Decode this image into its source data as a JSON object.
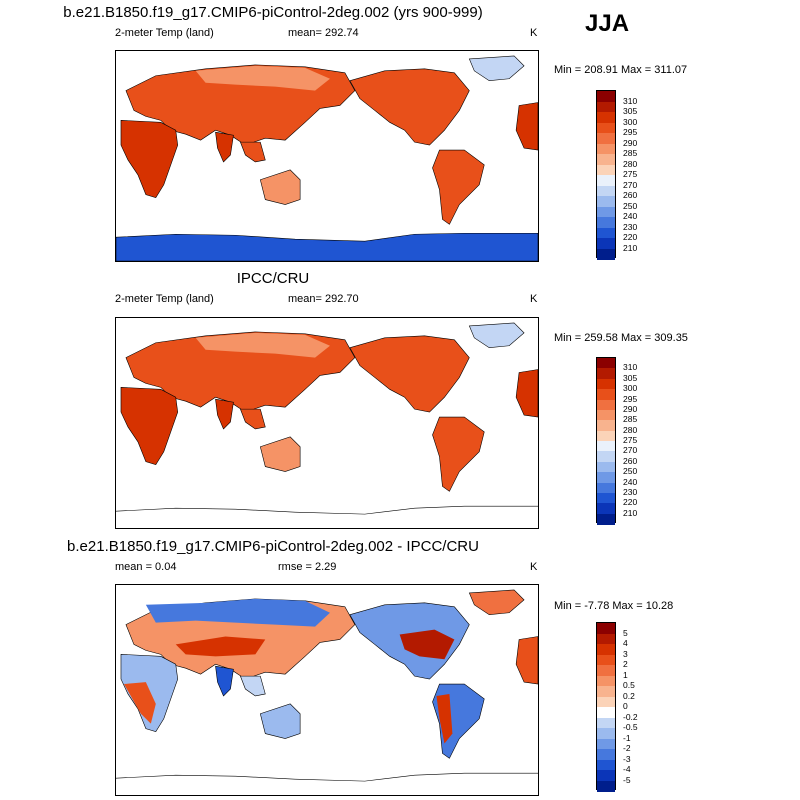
{
  "season_label": "JJA",
  "panels": [
    {
      "title": "b.e21.B1850.f19_g17.CMIP6-piControl-2deg.002 (yrs 900-999)",
      "left_label": "2-meter Temp (land)",
      "center_label": "mean= 292.74",
      "units": "K",
      "minmax": "Min = 208.91 Max = 311.07",
      "colorbar": [
        "310",
        "305",
        "300",
        "295",
        "290",
        "285",
        "280",
        "275",
        "270",
        "260",
        "250",
        "240",
        "230",
        "220",
        "210"
      ],
      "colorbar_colors": [
        "#8b0000",
        "#b31a00",
        "#d63200",
        "#e8501a",
        "#f07040",
        "#f59366",
        "#f8b38e",
        "#fbd3b8",
        "#eaf1fb",
        "#c3d6f4",
        "#9bbaee",
        "#6f99e6",
        "#4678dd",
        "#1f55d2",
        "#0b35b8",
        "#001e8c"
      ],
      "chart_data": {
        "type": "heatmap",
        "title": "b.e21.B1850.f19_g17.CMIP6-piControl-2deg.002 (yrs 900-999)",
        "variable": "2-meter Temp (land)",
        "units": "K",
        "mean": 292.74,
        "min": 208.91,
        "max": 311.07,
        "levels": [
          210,
          220,
          230,
          240,
          250,
          260,
          270,
          275,
          280,
          285,
          290,
          295,
          300,
          305,
          310
        ]
      }
    },
    {
      "title": "IPCC/CRU",
      "left_label": "2-meter Temp (land)",
      "center_label": "mean= 292.70",
      "units": "K",
      "minmax": "Min = 259.58 Max = 309.35",
      "colorbar": [
        "310",
        "305",
        "300",
        "295",
        "290",
        "285",
        "280",
        "275",
        "270",
        "260",
        "250",
        "240",
        "230",
        "220",
        "210"
      ],
      "colorbar_colors": [
        "#8b0000",
        "#b31a00",
        "#d63200",
        "#e8501a",
        "#f07040",
        "#f59366",
        "#f8b38e",
        "#fbd3b8",
        "#eaf1fb",
        "#c3d6f4",
        "#9bbaee",
        "#6f99e6",
        "#4678dd",
        "#1f55d2",
        "#0b35b8",
        "#001e8c"
      ],
      "chart_data": {
        "type": "heatmap",
        "title": "IPCC/CRU",
        "variable": "2-meter Temp (land)",
        "units": "K",
        "mean": 292.7,
        "min": 259.58,
        "max": 309.35,
        "levels": [
          210,
          220,
          230,
          240,
          250,
          260,
          270,
          275,
          280,
          285,
          290,
          295,
          300,
          305,
          310
        ]
      }
    },
    {
      "title": "b.e21.B1850.f19_g17.CMIP6-piControl-2deg.002 - IPCC/CRU",
      "left_label": "mean =   0.04",
      "center_label": "rmse =   2.29",
      "units": "K",
      "minmax": "Min =  -7.78 Max =  10.28",
      "colorbar": [
        "5",
        "4",
        "3",
        "2",
        "1",
        "0.5",
        "0.2",
        "0",
        "-0.2",
        "-0.5",
        "-1",
        "-2",
        "-3",
        "-4",
        "-5"
      ],
      "colorbar_colors": [
        "#8b0000",
        "#b31a00",
        "#d63200",
        "#e8501a",
        "#f07040",
        "#f59366",
        "#f8b38e",
        "#fbd3b8",
        "#ffffff",
        "#c3d6f4",
        "#9bbaee",
        "#6f99e6",
        "#4678dd",
        "#1f55d2",
        "#0b35b8",
        "#001e8c"
      ],
      "chart_data": {
        "type": "heatmap",
        "title": "b.e21.B1850.f19_g17.CMIP6-piControl-2deg.002 - IPCC/CRU",
        "units": "K",
        "mean": 0.04,
        "rmse": 2.29,
        "min": -7.78,
        "max": 10.28,
        "levels": [
          -5,
          -4,
          -3,
          -2,
          -1,
          -0.5,
          -0.2,
          0,
          0.2,
          0.5,
          1,
          2,
          3,
          4,
          5
        ]
      }
    }
  ]
}
